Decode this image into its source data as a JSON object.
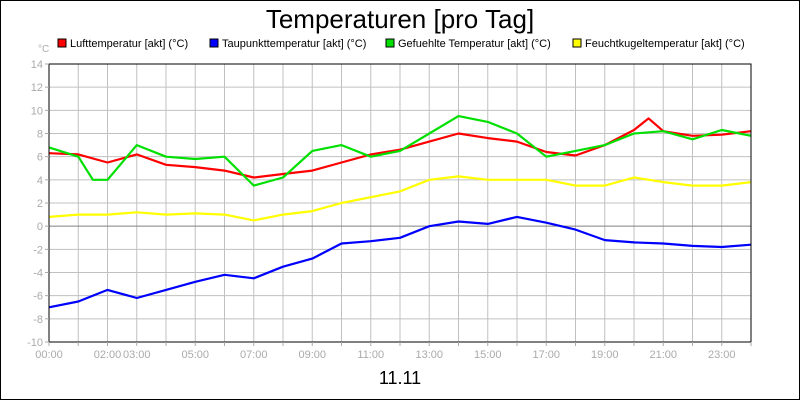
{
  "chart_data": {
    "type": "line",
    "title": "Temperaturen [pro Tag]",
    "xlabel": "11.11",
    "yunit": "°C",
    "ylim": [
      -10,
      14
    ],
    "yticks": [
      -10,
      -8,
      -6,
      -4,
      -2,
      0,
      2,
      4,
      6,
      8,
      10,
      12,
      14
    ],
    "xlim_hours": [
      0,
      24
    ],
    "xticks": [
      {
        "label": "00:00",
        "hour": 0
      },
      {
        "label": "02:00",
        "hour": 2
      },
      {
        "label": "03:00",
        "hour": 3
      },
      {
        "label": "05:00",
        "hour": 5
      },
      {
        "label": "07:00",
        "hour": 7
      },
      {
        "label": "09:00",
        "hour": 9
      },
      {
        "label": "11:00",
        "hour": 11
      },
      {
        "label": "13:00",
        "hour": 13
      },
      {
        "label": "15:00",
        "hour": 15
      },
      {
        "label": "17:00",
        "hour": 17
      },
      {
        "label": "19:00",
        "hour": 19
      },
      {
        "label": "21:00",
        "hour": 21
      },
      {
        "label": "23:00",
        "hour": 23
      }
    ],
    "grid": true,
    "legend_placement": "top",
    "series": [
      {
        "name": "Lufttemperatur [akt] (°C)",
        "color": "#ff0000",
        "x": [
          0,
          1,
          2,
          3,
          4,
          5,
          6,
          7,
          8,
          9,
          10,
          11,
          12,
          13,
          14,
          15,
          16,
          17,
          18,
          19,
          20,
          20.5,
          21,
          22,
          23,
          24
        ],
        "y": [
          6.3,
          6.2,
          5.5,
          6.2,
          5.3,
          5.1,
          4.8,
          4.2,
          4.5,
          4.8,
          5.5,
          6.2,
          6.6,
          7.3,
          8.0,
          7.6,
          7.3,
          6.4,
          6.1,
          7.0,
          8.3,
          9.3,
          8.2,
          7.8,
          7.9,
          8.2
        ]
      },
      {
        "name": "Taupunkttemperatur [akt] (°C)",
        "color": "#0000ff",
        "x": [
          0,
          1,
          2,
          3,
          4,
          5,
          6,
          7,
          8,
          9,
          10,
          11,
          12,
          13,
          14,
          15,
          16,
          17,
          18,
          19,
          20,
          21,
          22,
          23,
          24
        ],
        "y": [
          -7.0,
          -6.5,
          -5.5,
          -6.2,
          -5.5,
          -4.8,
          -4.2,
          -4.5,
          -3.5,
          -2.8,
          -1.5,
          -1.3,
          -1.0,
          0.0,
          0.4,
          0.2,
          0.8,
          0.3,
          -0.3,
          -1.2,
          -1.4,
          -1.5,
          -1.7,
          -1.8,
          -1.6
        ]
      },
      {
        "name": "Gefuehlte Temperatur [akt] (°C)",
        "color": "#00e000",
        "x": [
          0,
          1,
          1.5,
          2,
          3,
          4,
          5,
          6,
          7,
          8,
          9,
          10,
          11,
          12,
          13,
          14,
          15,
          16,
          17,
          18,
          19,
          20,
          21,
          22,
          23,
          24
        ],
        "y": [
          6.8,
          6.0,
          4.0,
          4.0,
          7.0,
          6.0,
          5.8,
          6.0,
          3.5,
          4.2,
          6.5,
          7.0,
          6.0,
          6.5,
          8.0,
          9.5,
          9.0,
          8.0,
          6.0,
          6.5,
          7.0,
          8.0,
          8.2,
          7.5,
          8.3,
          7.8
        ]
      },
      {
        "name": "Feuchtkugeltemperatur [akt] (°C)",
        "color": "#ffff00",
        "x": [
          0,
          1,
          2,
          3,
          4,
          5,
          6,
          7,
          8,
          9,
          10,
          11,
          12,
          13,
          14,
          15,
          16,
          17,
          18,
          19,
          20,
          21,
          22,
          23,
          24
        ],
        "y": [
          0.8,
          1.0,
          1.0,
          1.2,
          1.0,
          1.1,
          1.0,
          0.5,
          1.0,
          1.3,
          2.0,
          2.5,
          3.0,
          4.0,
          4.3,
          4.0,
          4.0,
          4.0,
          3.5,
          3.5,
          4.2,
          3.8,
          3.5,
          3.5,
          3.8
        ]
      }
    ]
  }
}
